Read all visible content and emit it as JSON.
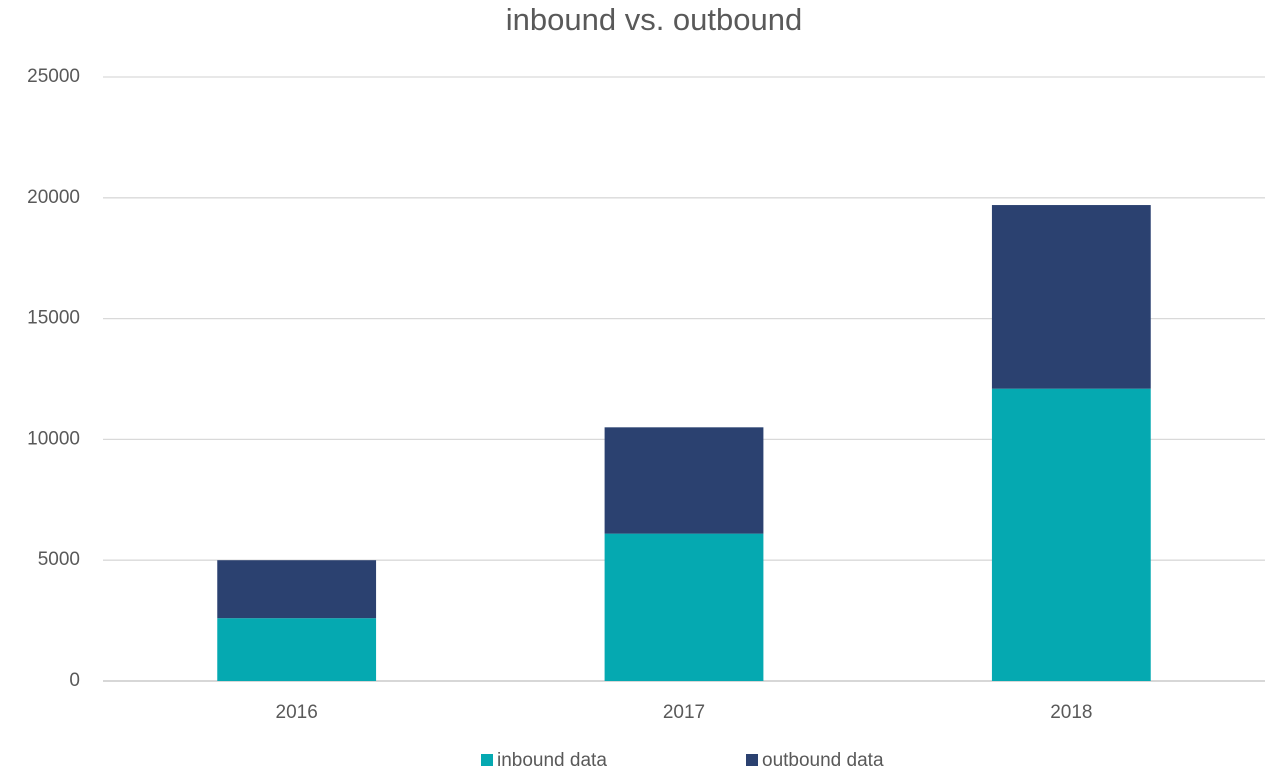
{
  "chart_data": {
    "type": "stacked_bar",
    "title": "inbound vs. outbound",
    "categories": [
      "2016",
      "2017",
      "2018"
    ],
    "series": [
      {
        "name": "inbound data",
        "color": "#05a9b1",
        "values": [
          2600,
          6100,
          12100
        ]
      },
      {
        "name": "outbound data",
        "color": "#2b4170",
        "values": [
          2400,
          4400,
          7600
        ]
      }
    ],
    "ylim": [
      0,
      25000
    ],
    "yticks": [
      0,
      5000,
      10000,
      15000,
      20000,
      25000
    ],
    "grid": true,
    "legend": "bottom"
  }
}
